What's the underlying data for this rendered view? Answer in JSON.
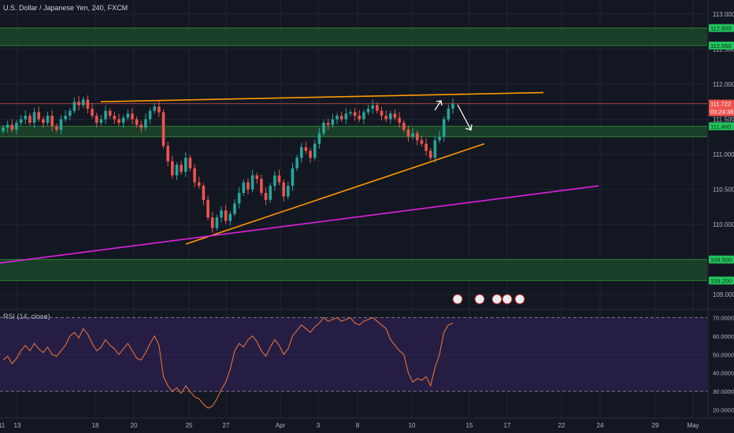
{
  "title": "U.S. Dollar / Japanese Yen, 240, FXCM",
  "colors": {
    "background": "#131722",
    "bull_candle": "#26a69a",
    "bear_candle": "#ef5350",
    "zone_fill": "#1e4d2b",
    "trendline_orange": "#ff9800",
    "trendline_magenta": "#e020e0",
    "price_line": "#e05a4f",
    "rsi_line": "#e0703a",
    "rsi_band": "#2a1f4a",
    "level_label": "#22c55e"
  },
  "price_axis": {
    "ticks": [
      "113.000",
      "112.500",
      "112.000",
      "111.500",
      "111.000",
      "110.500",
      "110.000",
      "109.500",
      "109.000"
    ],
    "current_price": "111.722",
    "countdown": "03:24:38",
    "zone_labels": [
      "112.800",
      "112.550",
      "111.400",
      "109.500",
      "109.200"
    ]
  },
  "time_axis": {
    "labels": [
      "11",
      "13",
      "18",
      "20",
      "25",
      "27",
      "Apr",
      "3",
      "8",
      "10",
      "15",
      "17",
      "22",
      "24",
      "29",
      "May"
    ]
  },
  "rsi": {
    "label": "RSI (14, close)",
    "ticks": [
      "70.0000",
      "60.0000",
      "50.0000",
      "40.0000",
      "30.0000",
      "20.0000"
    ],
    "upper": 70,
    "lower": 30
  },
  "chart_data": {
    "type": "candlestick",
    "title": "U.S. Dollar / Japanese Yen, 240, FXCM",
    "price_range": [
      108.8,
      113.2
    ],
    "support_resistance_zones": [
      [
        112.55,
        112.8
      ],
      [
        111.25,
        111.4
      ],
      [
        109.2,
        109.5
      ]
    ],
    "series_close": [
      111.38,
      111.42,
      111.35,
      111.45,
      111.5,
      111.55,
      111.45,
      111.6,
      111.5,
      111.45,
      111.55,
      111.4,
      111.35,
      111.5,
      111.55,
      111.62,
      111.75,
      111.7,
      111.78,
      111.65,
      111.55,
      111.45,
      111.5,
      111.62,
      111.55,
      111.5,
      111.45,
      111.52,
      111.58,
      111.5,
      111.42,
      111.38,
      111.5,
      111.62,
      111.68,
      111.6,
      111.12,
      110.9,
      110.7,
      110.85,
      110.75,
      110.95,
      110.8,
      110.6,
      110.55,
      110.35,
      110.1,
      109.95,
      110.1,
      110.2,
      110.05,
      110.15,
      110.3,
      110.45,
      110.6,
      110.5,
      110.7,
      110.65,
      110.45,
      110.35,
      110.55,
      110.7,
      110.6,
      110.4,
      110.55,
      110.8,
      110.95,
      111.1,
      111.05,
      110.95,
      111.15,
      111.3,
      111.45,
      111.42,
      111.5,
      111.55,
      111.5,
      111.58,
      111.6,
      111.55,
      111.5,
      111.6,
      111.65,
      111.7,
      111.62,
      111.55,
      111.5,
      111.58,
      111.52,
      111.45,
      111.35,
      111.25,
      111.3,
      111.2,
      111.15,
      111.05,
      110.95,
      111.2,
      111.25,
      111.5,
      111.65,
      111.72
    ],
    "trendlines": [
      {
        "from": [
          "Mar 18",
          111.75
        ],
        "to": [
          "Apr 19",
          111.88
        ]
      },
      {
        "from": [
          "Mar 25",
          109.72
        ],
        "to": [
          "Apr 15",
          111.15
        ]
      },
      {
        "from": [
          "Mar 11",
          109.45
        ],
        "to": [
          "Apr 23",
          110.55
        ]
      }
    ],
    "annotations": [
      "up arrow near Apr 12",
      "down arrow near Apr 14"
    ],
    "rsi_series": [
      47,
      49,
      45,
      48,
      52,
      55,
      52,
      56,
      53,
      51,
      54,
      50,
      49,
      52,
      55,
      60,
      62,
      59,
      64,
      61,
      56,
      52,
      54,
      58,
      55,
      53,
      50,
      53,
      56,
      52,
      48,
      47,
      51,
      56,
      60,
      55,
      38,
      33,
      30,
      32,
      29,
      33,
      30,
      27,
      26,
      23,
      21,
      22,
      26,
      31,
      35,
      42,
      52,
      56,
      54,
      58,
      60,
      57,
      52,
      49,
      54,
      58,
      55,
      50,
      53,
      60,
      63,
      66,
      64,
      62,
      65,
      67,
      70,
      68,
      69,
      70,
      68,
      69,
      70,
      67,
      66,
      68,
      69,
      70,
      68,
      66,
      64,
      58,
      55,
      52,
      50,
      40,
      35,
      37,
      36,
      38,
      33,
      43,
      50,
      62,
      66,
      67
    ]
  }
}
